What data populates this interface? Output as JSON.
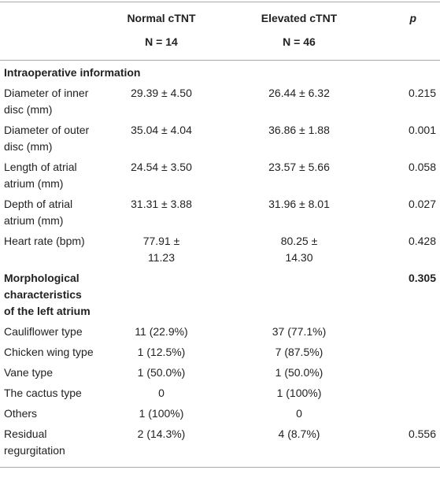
{
  "header": {
    "columns": [
      {
        "label": "Normal cTNT",
        "n": "N = 14"
      },
      {
        "label": "Elevated cTNT",
        "n": "N = 46"
      },
      {
        "label": "p"
      }
    ]
  },
  "sections": [
    {
      "title": "Intraoperative information",
      "rows": [
        {
          "label": "Diameter of inner\ndisc (mm)",
          "normal": "29.39 ± 4.50",
          "elevated": "26.44 ± 6.32",
          "p": "0.215"
        },
        {
          "label": "Diameter of outer\ndisc (mm)",
          "normal": "35.04 ± 4.04",
          "elevated": "36.86 ± 1.88",
          "p": "0.001"
        },
        {
          "label": "Length of atrial\natrium (mm)",
          "normal": "24.54 ± 3.50",
          "elevated": "23.57 ± 5.66",
          "p": "0.058"
        },
        {
          "label": "Depth of atrial\natrium (mm)",
          "normal": "31.31 ± 3.88",
          "elevated": "31.96 ± 8.01",
          "p": "0.027"
        },
        {
          "label": "Heart rate (bpm)",
          "normal": "77.91 ±\n11.23",
          "elevated": "80.25 ±\n14.30",
          "p": "0.428"
        }
      ]
    },
    {
      "title": "Morphological\ncharacteristics\nof the left atrium",
      "p": "0.305",
      "rows": [
        {
          "label": "Cauliflower type",
          "normal": "11 (22.9%)",
          "elevated": "37 (77.1%)"
        },
        {
          "label": "Chicken wing type",
          "normal": "1 (12.5%)",
          "elevated": "7 (87.5%)"
        },
        {
          "label": "Vane type",
          "normal": "1 (50.0%)",
          "elevated": "1 (50.0%)"
        },
        {
          "label": "The cactus type",
          "normal": "0",
          "elevated": "1 (100%)"
        },
        {
          "label": "Others",
          "normal": "1 (100%)",
          "elevated": "0"
        },
        {
          "label": "Residual\nregurgitation",
          "normal": "2 (14.3%)",
          "elevated": "4 (8.7%)",
          "p": "0.556"
        }
      ]
    }
  ]
}
